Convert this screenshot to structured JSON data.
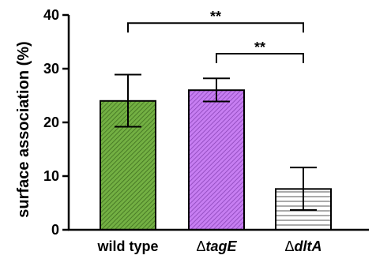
{
  "chart_data": {
    "type": "bar",
    "title": "",
    "xlabel": "",
    "ylabel": "surface association (%)",
    "ylim": [
      0,
      40
    ],
    "yticks": [
      "0",
      "10",
      "20",
      "30",
      "40"
    ],
    "grid": false,
    "legend": "none",
    "categories": [
      {
        "prefix": "",
        "name": "wild type",
        "italic": false
      },
      {
        "prefix": "Δ",
        "name": "tagE",
        "italic": true
      },
      {
        "prefix": "Δ",
        "name": "dltA",
        "italic": true
      }
    ],
    "values": [
      24.0,
      26.0,
      7.6
    ],
    "error_low": [
      19.2,
      23.9,
      3.7
    ],
    "error_high": [
      28.9,
      28.2,
      11.6
    ],
    "bar_styles": [
      {
        "fill": "#73b043",
        "pattern": "diagonal-hatch"
      },
      {
        "fill": "#c77ef2",
        "pattern": "diagonal-hatch"
      },
      {
        "fill": "#ffffff",
        "pattern": "horizontal-lines"
      }
    ],
    "significance": [
      {
        "from": 0,
        "to": 2,
        "label": "**",
        "y": 38.5
      },
      {
        "from": 1,
        "to": 2,
        "label": "**",
        "y": 32.8
      }
    ]
  }
}
